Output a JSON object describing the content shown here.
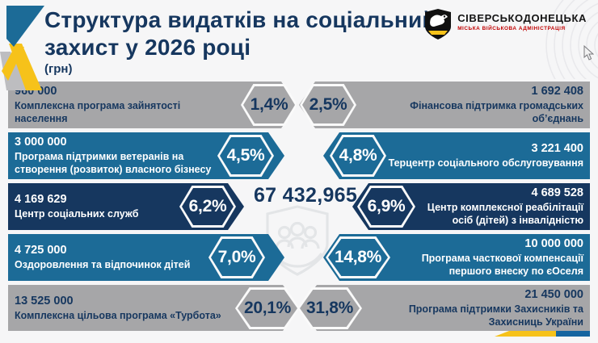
{
  "header": {
    "title_line1": "Структура видатків на соціальний",
    "title_line2": "захист у 2026 році",
    "unit": "(грн)",
    "logo_name": "СІВЕРСЬКОДОНЕЦЬКА",
    "logo_subtitle": "МІСЬКА ВІЙСЬКОВА АДМІНІСТРАЦІЯ"
  },
  "total": "67 432,965",
  "rows": [
    {
      "theme": "gray",
      "left": {
        "amount": "960 000",
        "label": "Комплексна програма зайнятості населення",
        "pct": "1,4%"
      },
      "right": {
        "amount": "1 692 408",
        "label": "Фінансова підтримка громадських об’єднань",
        "pct": "2,5%"
      }
    },
    {
      "theme": "teal",
      "left": {
        "amount": "3 000 000",
        "label": "Програма підтримки ветеранів на створення (розвиток) власного бізнесу",
        "pct": "4,5%"
      },
      "right": {
        "amount": "3 221 400",
        "label": "Терцентр соціального обслуговування",
        "pct": "4,8%"
      }
    },
    {
      "theme": "navy",
      "left": {
        "amount": "4 169 629",
        "label": "Центр соціальних служб",
        "pct": "6,2%"
      },
      "right": {
        "amount": "4 689 528",
        "label": "Центр комплексної реабілітації осіб (дітей) з інвалідністю",
        "pct": "6,9%"
      }
    },
    {
      "theme": "teal",
      "left": {
        "amount": "4 725 000",
        "label": "Оздоровлення та відпочинок дітей",
        "pct": "7,0%"
      },
      "right": {
        "amount": "10 000 000",
        "label": "Програма часткової компенсації першого внеску по єОселя",
        "pct": "14,8%"
      }
    },
    {
      "theme": "gray",
      "left": {
        "amount": "13 525 000",
        "label": "Комплексна цільова програма «Турбота»",
        "pct": "20,1%"
      },
      "right": {
        "amount": "21 450 000",
        "label": "Програма підтримки Захисників та Захисниць України",
        "pct": "31,8%"
      }
    }
  ],
  "colors": {
    "navy": "#16375f",
    "teal": "#1c6b97",
    "gray": "#a6a6a8",
    "yellow": "#f6c21a",
    "accent_blue": "#1565a0",
    "logo_red": "#c00000"
  },
  "chart_data": {
    "type": "bar",
    "title": "Структура видатків на соціальний захист у 2026 році (грн)",
    "total": 67432965,
    "legend_position": "none",
    "items": [
      {
        "label": "Комплексна програма зайнятості населення",
        "amount": 960000,
        "percent": 1.4
      },
      {
        "label": "Фінансова підтримка громадських об’єднань",
        "amount": 1692408,
        "percent": 2.5
      },
      {
        "label": "Програма підтримки ветеранів на створення (розвиток) власного бізнесу",
        "amount": 3000000,
        "percent": 4.5
      },
      {
        "label": "Терцентр соціального обслуговування",
        "amount": 3221400,
        "percent": 4.8
      },
      {
        "label": "Центр соціальних служб",
        "amount": 4169629,
        "percent": 6.2
      },
      {
        "label": "Центр комплексної реабілітації осіб (дітей) з інвалідністю",
        "amount": 4689528,
        "percent": 6.9
      },
      {
        "label": "Оздоровлення та відпочинок дітей",
        "amount": 4725000,
        "percent": 7.0
      },
      {
        "label": "Програма часткової компенсації першого внеску по єОселя",
        "amount": 10000000,
        "percent": 14.8
      },
      {
        "label": "Комплексна цільова програма «Турбота»",
        "amount": 13525000,
        "percent": 20.1
      },
      {
        "label": "Програма підтримки Захисників та Захисниць України",
        "amount": 21450000,
        "percent": 31.8
      }
    ]
  }
}
